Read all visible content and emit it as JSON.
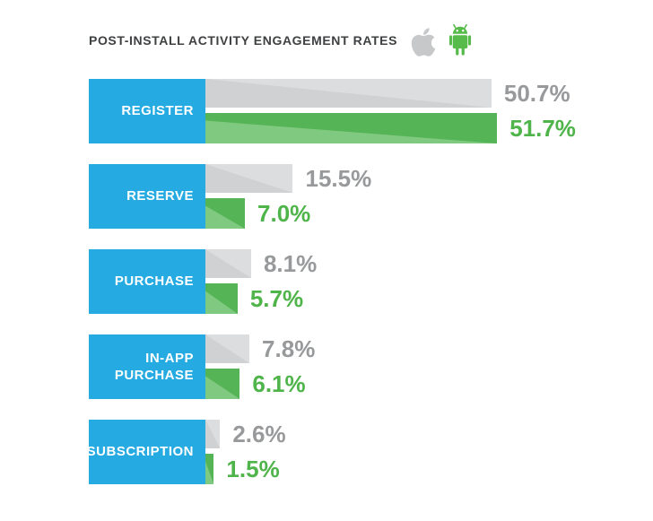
{
  "header": {
    "title": "POST-INSTALL ACTIVITY ENGAGEMENT RATES",
    "icons": [
      {
        "name": "apple-icon",
        "color": "#c6c8ca"
      },
      {
        "name": "android-icon",
        "color": "#57bb4b"
      }
    ]
  },
  "colors": {
    "category_box": "#25aae1",
    "category_text": "#ffffff",
    "gray_bar": "#dcddde",
    "gray_bar_shade": "#cfd1d2",
    "green_bar": "#55b455",
    "green_bar_shade": "#80c980",
    "gray_value_text": "#97999b",
    "green_value_text": "#4fb44a",
    "title_text": "#3f4042"
  },
  "chart_data": {
    "type": "bar",
    "orientation": "horizontal",
    "title": "POST-INSTALL ACTIVITY ENGAGEMENT RATES",
    "xlabel": "",
    "ylabel": "",
    "xlim": [
      0,
      55
    ],
    "grid": false,
    "legend": "icons top-right (apple = gray bars, android = green bars)",
    "categories": [
      "REGISTER",
      "RESERVE",
      "PURCHASE",
      "IN-APP PURCHASE",
      "SUBSCRIPTION"
    ],
    "category_lines": [
      [
        "REGISTER"
      ],
      [
        "RESERVE"
      ],
      [
        "PURCHASE"
      ],
      [
        "IN-APP",
        "PURCHASE"
      ],
      [
        "SUBSCRIPTION"
      ]
    ],
    "series": [
      {
        "name": "Apple (iOS)",
        "key": "apple",
        "color": "#dcddde",
        "label_color": "#97999b",
        "values": [
          50.7,
          15.5,
          8.1,
          7.8,
          2.6
        ],
        "labels": [
          "50.7%",
          "15.5%",
          "8.1%",
          "7.8%",
          "2.6%"
        ]
      },
      {
        "name": "Android",
        "key": "android",
        "color": "#55b455",
        "label_color": "#4fb44a",
        "values": [
          51.7,
          7.0,
          5.7,
          6.1,
          1.5
        ],
        "labels": [
          "51.7%",
          "7.0%",
          "5.7%",
          "6.1%",
          "1.5%"
        ]
      }
    ]
  }
}
